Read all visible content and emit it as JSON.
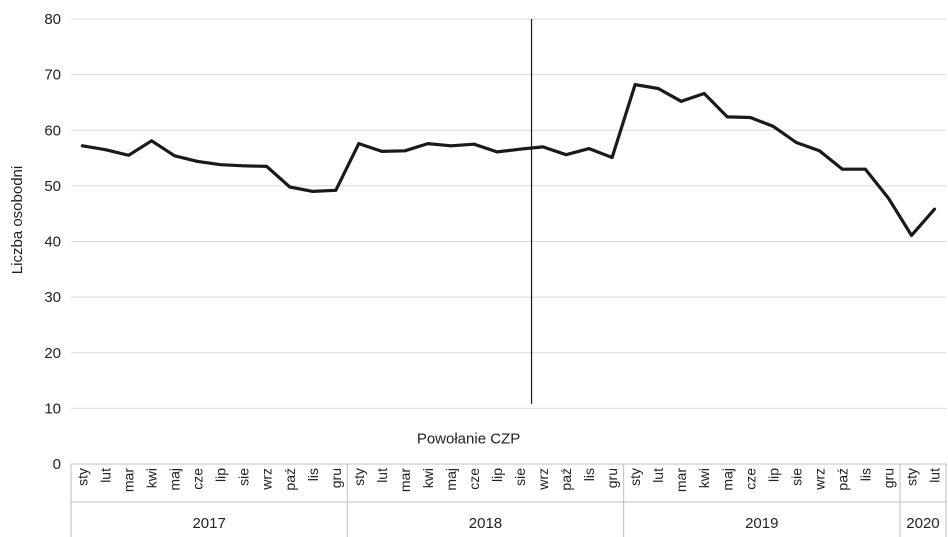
{
  "chart_data": {
    "type": "line",
    "title": "",
    "xlabel": "",
    "ylabel": "Liczba osobodni",
    "ylim": [
      0,
      80
    ],
    "yticks": [
      0,
      10,
      20,
      30,
      40,
      50,
      60,
      70,
      80
    ],
    "grid": true,
    "legend": "none",
    "line_color": "#1a1a1a",
    "grid_color": "#d9d9d9",
    "years": [
      {
        "label": "2017",
        "months": 12
      },
      {
        "label": "2018",
        "months": 12
      },
      {
        "label": "2019",
        "months": 12
      },
      {
        "label": "2020",
        "months": 2
      }
    ],
    "categories": [
      "sty",
      "lut",
      "mar",
      "kwi",
      "maj",
      "cze",
      "lip",
      "sie",
      "wrz",
      "paź",
      "lis",
      "gru",
      "sty",
      "lut",
      "mar",
      "kwi",
      "maj",
      "cze",
      "lip",
      "sie",
      "wrz",
      "paź",
      "lis",
      "gru",
      "sty",
      "lut",
      "mar",
      "kwi",
      "maj",
      "cze",
      "lip",
      "sie",
      "wrz",
      "paź",
      "lis",
      "gru",
      "sty",
      "lut"
    ],
    "values": [
      57.2,
      56.5,
      55.5,
      58.1,
      55.4,
      54.4,
      53.8,
      53.6,
      53.5,
      49.8,
      49.0,
      49.2,
      57.6,
      56.2,
      56.3,
      57.6,
      57.2,
      57.5,
      56.1,
      56.6,
      57.0,
      55.6,
      56.7,
      55.1,
      68.2,
      67.5,
      65.2,
      66.6,
      62.4,
      62.3,
      60.7,
      57.8,
      56.3,
      53.0,
      53.0,
      47.8,
      41.1,
      45.8
    ],
    "annotation": {
      "label": "Powołanie CZP",
      "after_index": 19
    }
  }
}
